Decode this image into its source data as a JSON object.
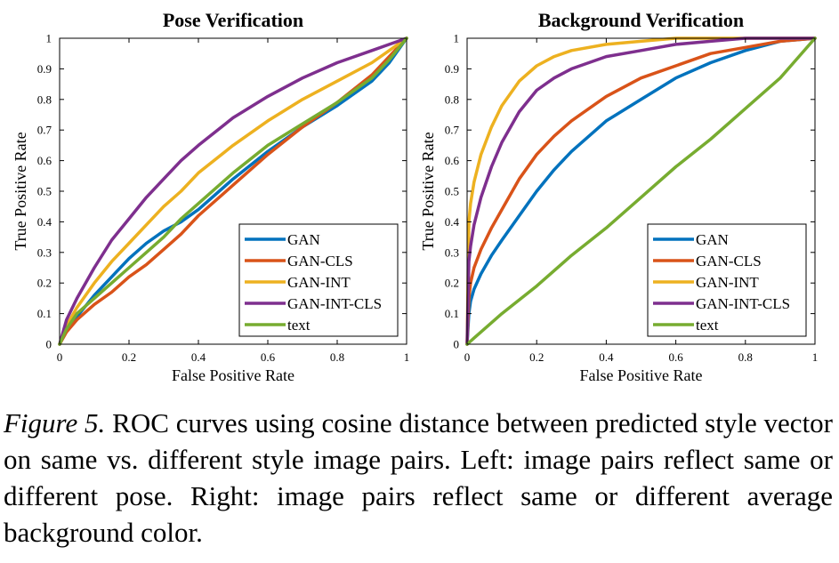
{
  "chart_data": [
    {
      "type": "line",
      "title": "Pose Verification",
      "xlabel": "False Positive Rate",
      "ylabel": "True Positive Rate",
      "xlim": [
        0,
        1
      ],
      "ylim": [
        0,
        1
      ],
      "xticks": [
        "0",
        "0.2",
        "0.4",
        "0.6",
        "0.8",
        "1"
      ],
      "yticks": [
        "0",
        "0.1",
        "0.2",
        "0.3",
        "0.4",
        "0.5",
        "0.6",
        "0.7",
        "0.8",
        "0.9",
        "1"
      ],
      "grid": false,
      "legend_position": "bottom-right",
      "series": [
        {
          "name": "GAN",
          "color": "#0072BD",
          "x": [
            0,
            0.02,
            0.05,
            0.1,
            0.15,
            0.2,
            0.25,
            0.3,
            0.35,
            0.4,
            0.5,
            0.6,
            0.7,
            0.8,
            0.9,
            0.95,
            1
          ],
          "y": [
            0,
            0.05,
            0.09,
            0.16,
            0.22,
            0.28,
            0.33,
            0.37,
            0.4,
            0.44,
            0.54,
            0.63,
            0.71,
            0.78,
            0.86,
            0.92,
            1
          ]
        },
        {
          "name": "GAN-CLS",
          "color": "#D95319",
          "x": [
            0,
            0.02,
            0.05,
            0.1,
            0.15,
            0.2,
            0.25,
            0.3,
            0.35,
            0.4,
            0.5,
            0.6,
            0.7,
            0.8,
            0.9,
            0.95,
            1
          ],
          "y": [
            0,
            0.04,
            0.08,
            0.13,
            0.17,
            0.22,
            0.26,
            0.31,
            0.36,
            0.42,
            0.52,
            0.62,
            0.71,
            0.79,
            0.88,
            0.94,
            1
          ]
        },
        {
          "name": "GAN-INT",
          "color": "#EDB120",
          "x": [
            0,
            0.02,
            0.05,
            0.1,
            0.15,
            0.2,
            0.25,
            0.3,
            0.35,
            0.4,
            0.5,
            0.6,
            0.7,
            0.8,
            0.9,
            0.95,
            1
          ],
          "y": [
            0,
            0.06,
            0.12,
            0.2,
            0.27,
            0.33,
            0.39,
            0.45,
            0.5,
            0.56,
            0.65,
            0.73,
            0.8,
            0.86,
            0.92,
            0.96,
            1
          ]
        },
        {
          "name": "GAN-INT-CLS",
          "color": "#7E2F8E",
          "x": [
            0,
            0.02,
            0.05,
            0.1,
            0.15,
            0.2,
            0.25,
            0.3,
            0.35,
            0.4,
            0.5,
            0.6,
            0.7,
            0.8,
            0.9,
            0.95,
            1
          ],
          "y": [
            0,
            0.08,
            0.15,
            0.25,
            0.34,
            0.41,
            0.48,
            0.54,
            0.6,
            0.65,
            0.74,
            0.81,
            0.87,
            0.92,
            0.96,
            0.98,
            1
          ]
        },
        {
          "name": "text",
          "color": "#77AC30",
          "x": [
            0,
            0.02,
            0.05,
            0.1,
            0.15,
            0.2,
            0.25,
            0.3,
            0.35,
            0.4,
            0.5,
            0.6,
            0.7,
            0.8,
            0.9,
            0.95,
            1
          ],
          "y": [
            0,
            0.05,
            0.1,
            0.15,
            0.2,
            0.25,
            0.3,
            0.35,
            0.41,
            0.46,
            0.56,
            0.65,
            0.72,
            0.79,
            0.87,
            0.93,
            1
          ]
        }
      ]
    },
    {
      "type": "line",
      "title": "Background Verification",
      "xlabel": "False Positive Rate",
      "ylabel": "True Positive Rate",
      "xlim": [
        0,
        1
      ],
      "ylim": [
        0,
        1
      ],
      "xticks": [
        "0",
        "0.2",
        "0.4",
        "0.6",
        "0.8",
        "1"
      ],
      "yticks": [
        "0",
        "0.1",
        "0.2",
        "0.3",
        "0.4",
        "0.5",
        "0.6",
        "0.7",
        "0.8",
        "0.9",
        "1"
      ],
      "grid": false,
      "legend_position": "bottom-right",
      "series": [
        {
          "name": "GAN",
          "color": "#0072BD",
          "x": [
            0,
            0.005,
            0.01,
            0.02,
            0.04,
            0.07,
            0.1,
            0.15,
            0.2,
            0.25,
            0.3,
            0.4,
            0.5,
            0.6,
            0.7,
            0.8,
            0.9,
            1
          ],
          "y": [
            0,
            0.1,
            0.14,
            0.18,
            0.23,
            0.29,
            0.34,
            0.42,
            0.5,
            0.57,
            0.63,
            0.73,
            0.8,
            0.87,
            0.92,
            0.96,
            0.99,
            1
          ]
        },
        {
          "name": "GAN-CLS",
          "color": "#D95319",
          "x": [
            0,
            0.005,
            0.01,
            0.02,
            0.04,
            0.07,
            0.1,
            0.15,
            0.2,
            0.25,
            0.3,
            0.4,
            0.5,
            0.6,
            0.7,
            0.8,
            0.9,
            1
          ],
          "y": [
            0,
            0.15,
            0.2,
            0.25,
            0.31,
            0.38,
            0.44,
            0.54,
            0.62,
            0.68,
            0.73,
            0.81,
            0.87,
            0.91,
            0.95,
            0.97,
            0.99,
            1
          ]
        },
        {
          "name": "GAN-INT",
          "color": "#EDB120",
          "x": [
            0,
            0.005,
            0.01,
            0.02,
            0.04,
            0.07,
            0.1,
            0.15,
            0.2,
            0.25,
            0.3,
            0.4,
            0.5,
            0.6,
            0.7,
            0.8,
            0.9,
            1
          ],
          "y": [
            0,
            0.4,
            0.46,
            0.53,
            0.62,
            0.71,
            0.78,
            0.86,
            0.91,
            0.94,
            0.96,
            0.98,
            0.99,
            1,
            1,
            1,
            1,
            1
          ]
        },
        {
          "name": "GAN-INT-CLS",
          "color": "#7E2F8E",
          "x": [
            0,
            0.005,
            0.01,
            0.02,
            0.04,
            0.07,
            0.1,
            0.15,
            0.2,
            0.25,
            0.3,
            0.4,
            0.5,
            0.6,
            0.7,
            0.8,
            0.9,
            1
          ],
          "y": [
            0,
            0.27,
            0.32,
            0.39,
            0.48,
            0.58,
            0.66,
            0.76,
            0.83,
            0.87,
            0.9,
            0.94,
            0.96,
            0.98,
            0.99,
            1,
            1,
            1
          ]
        },
        {
          "name": "text",
          "color": "#77AC30",
          "x": [
            0,
            0.01,
            0.02,
            0.05,
            0.1,
            0.2,
            0.3,
            0.4,
            0.5,
            0.6,
            0.7,
            0.8,
            0.9,
            1
          ],
          "y": [
            0,
            0.01,
            0.02,
            0.05,
            0.1,
            0.19,
            0.29,
            0.38,
            0.48,
            0.58,
            0.67,
            0.77,
            0.87,
            1
          ]
        }
      ]
    }
  ],
  "caption": {
    "label": "Figure 5.",
    "text": "ROC curves using cosine distance between predicted style vector on same vs. different style image pairs. Left: image pairs reflect same or different pose. Right: image pairs reflect same or different average background color."
  }
}
